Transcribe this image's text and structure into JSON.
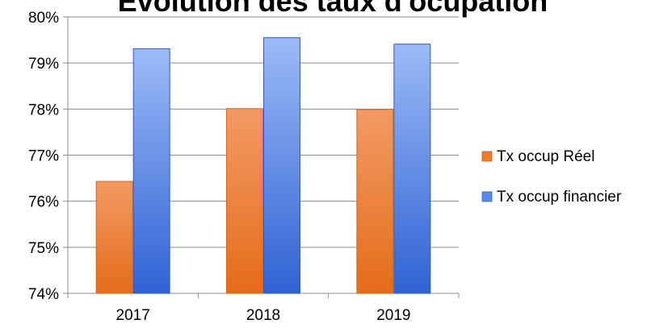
{
  "chart_data": {
    "type": "bar",
    "title": "Evolution des taux d'ocupation",
    "xlabel": "",
    "ylabel": "",
    "categories": [
      "2017",
      "2018",
      "2019"
    ],
    "series": [
      {
        "name": "Tx occup Réel",
        "values": [
          76.43,
          78.01,
          77.99
        ],
        "color": "#ee7d2e",
        "color_light": "#f29a64"
      },
      {
        "name": "Tx occup financier",
        "values": [
          79.31,
          79.55,
          79.41
        ],
        "color": "#3a6fd8",
        "color_light": "#97b6f6"
      }
    ],
    "ylim": [
      74,
      80
    ],
    "yticks": [
      "74%",
      "75%",
      "76%",
      "77%",
      "78%",
      "79%",
      "80%"
    ],
    "grid": true,
    "legend_position": "right"
  }
}
